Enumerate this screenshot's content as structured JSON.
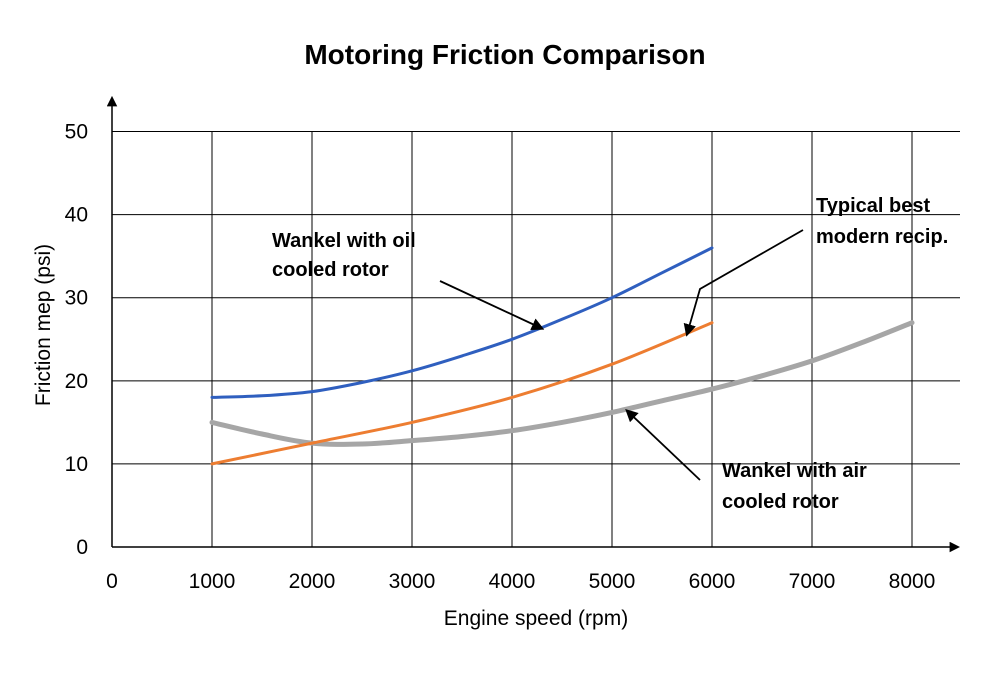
{
  "chart_data": {
    "type": "line",
    "title": "Motoring Friction Comparison",
    "xlabel": "Engine speed (rpm)",
    "ylabel": "Friction mep (psi)",
    "xlim": [
      0,
      8500
    ],
    "ylim": [
      0,
      55
    ],
    "xticks": [
      0,
      1000,
      2000,
      3000,
      4000,
      5000,
      6000,
      7000,
      8000
    ],
    "yticks": [
      0,
      10,
      20,
      30,
      40,
      50
    ],
    "grid": true,
    "legend": "none",
    "series": [
      {
        "color": "#2f5fbf",
        "x": [
          1000,
          1500,
          2000,
          2500,
          3000,
          3500,
          4000,
          4500,
          5000,
          5500,
          6000
        ],
        "y": [
          18,
          18.2,
          18.7,
          19.8,
          21.2,
          23.0,
          25.0,
          27.4,
          30.0,
          33.0,
          36.0
        ]
      },
      {
        "color": "#ed7d31",
        "x": [
          1000,
          2000,
          3000,
          4000,
          5000,
          6000
        ],
        "y": [
          10,
          12.5,
          15.0,
          18.0,
          22.0,
          27.0
        ]
      },
      {
        "color": "#a6a6a6",
        "x": [
          1000,
          1500,
          2000,
          2500,
          3000,
          3500,
          4000,
          4500,
          5000,
          5500,
          6000,
          6500,
          7000,
          7500,
          8000
        ],
        "y": [
          15,
          13.6,
          12.5,
          12.4,
          12.8,
          13.3,
          14.0,
          15.0,
          16.2,
          17.6,
          19.0,
          20.6,
          22.4,
          24.6,
          27.0
        ]
      }
    ],
    "annotations": [
      {
        "lines": [
          "Wankel with oil",
          "cooled rotor"
        ],
        "arrow_to": [
          4300,
          26.3
        ]
      },
      {
        "lines": [
          "Typical best",
          "modern recip."
        ],
        "arrow_to": [
          5750,
          25.6
        ]
      },
      {
        "lines": [
          "Wankel with air",
          "cooled rotor"
        ],
        "arrow_to": [
          5150,
          16.4
        ]
      }
    ]
  }
}
